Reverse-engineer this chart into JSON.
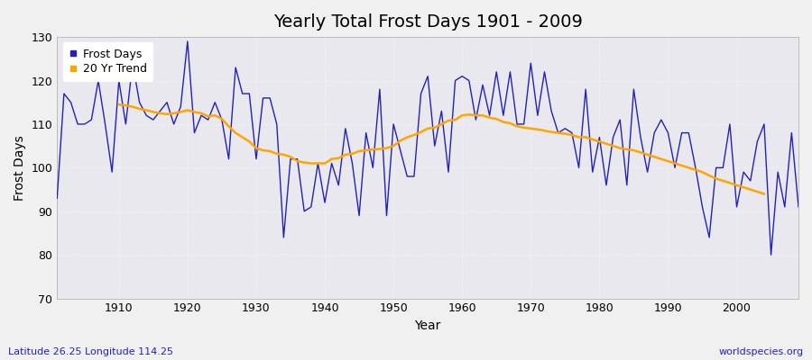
{
  "title": "Yearly Total Frost Days 1901 - 2009",
  "xlabel": "Year",
  "ylabel": "Frost Days",
  "lat_label": "Latitude 26.25 Longitude 114.25",
  "source_label": "worldspecies.org",
  "years": [
    1901,
    1902,
    1903,
    1904,
    1905,
    1906,
    1907,
    1908,
    1909,
    1910,
    1911,
    1912,
    1913,
    1914,
    1915,
    1916,
    1917,
    1918,
    1919,
    1920,
    1921,
    1922,
    1923,
    1924,
    1925,
    1926,
    1927,
    1928,
    1929,
    1930,
    1931,
    1932,
    1933,
    1934,
    1935,
    1936,
    1937,
    1938,
    1939,
    1940,
    1941,
    1942,
    1943,
    1944,
    1945,
    1946,
    1947,
    1948,
    1949,
    1950,
    1951,
    1952,
    1953,
    1954,
    1955,
    1956,
    1957,
    1958,
    1959,
    1960,
    1961,
    1962,
    1963,
    1964,
    1965,
    1966,
    1967,
    1968,
    1969,
    1970,
    1971,
    1972,
    1973,
    1974,
    1975,
    1976,
    1977,
    1978,
    1979,
    1980,
    1981,
    1982,
    1983,
    1984,
    1985,
    1986,
    1987,
    1988,
    1989,
    1990,
    1991,
    1992,
    1993,
    1994,
    1995,
    1996,
    1997,
    1998,
    1999,
    2000,
    2001,
    2002,
    2003,
    2004,
    2005,
    2006,
    2007,
    2008,
    2009
  ],
  "frost_days": [
    93,
    117,
    115,
    110,
    110,
    111,
    120,
    110,
    99,
    120,
    110,
    124,
    115,
    112,
    111,
    113,
    115,
    110,
    114,
    129,
    108,
    112,
    111,
    115,
    111,
    102,
    123,
    117,
    117,
    102,
    116,
    116,
    110,
    84,
    102,
    102,
    90,
    91,
    101,
    92,
    101,
    96,
    109,
    101,
    89,
    108,
    100,
    118,
    89,
    110,
    104,
    98,
    98,
    117,
    121,
    105,
    113,
    99,
    120,
    121,
    120,
    111,
    119,
    112,
    122,
    112,
    122,
    110,
    110,
    124,
    112,
    122,
    113,
    108,
    109,
    108,
    100,
    118,
    99,
    107,
    96,
    107,
    111,
    96,
    118,
    107,
    99,
    108,
    111,
    108,
    100,
    108,
    108,
    100,
    91,
    84,
    100,
    100,
    110,
    91,
    99,
    97,
    106,
    110,
    80,
    99,
    91,
    108,
    91
  ],
  "trend_years": [
    1901,
    1902,
    1903,
    1904,
    1905,
    1906,
    1907,
    1908,
    1909,
    1910,
    1911,
    1912,
    1913,
    1914,
    1915,
    1916,
    1917,
    1918,
    1919,
    1920,
    1921,
    1922,
    1923,
    1924,
    1925,
    1926,
    1927,
    1928,
    1929,
    1930,
    1931,
    1932,
    1933,
    1934,
    1935,
    1936,
    1937,
    1938,
    1939,
    1940,
    1941,
    1942,
    1943,
    1944,
    1945,
    1946,
    1947,
    1948,
    1949,
    1950,
    1951,
    1952,
    1953,
    1954,
    1955,
    1956,
    1957,
    1958,
    1959,
    1960,
    1961,
    1962,
    1963,
    1964,
    1965,
    1966,
    1967,
    1968,
    1969,
    1970,
    1971,
    1972,
    1973,
    1974,
    1975,
    1976,
    1977,
    1978,
    1979,
    1980,
    1981,
    1982,
    1983,
    1984,
    1985,
    1986,
    1987,
    1988,
    1989,
    1990,
    1991,
    1992,
    1993,
    1994,
    1995,
    1996,
    1997,
    1998,
    1999,
    2000,
    2001,
    2002,
    2003,
    2004,
    2005,
    2006,
    2007,
    2008,
    2009
  ],
  "trend_values": [
    null,
    null,
    null,
    null,
    null,
    null,
    null,
    null,
    null,
    114.5,
    114.3,
    114.0,
    113.5,
    113.2,
    112.8,
    112.5,
    112.3,
    112.5,
    112.8,
    113.2,
    112.8,
    112.5,
    111.8,
    112.0,
    111.2,
    109.5,
    108.0,
    107.0,
    106.0,
    104.5,
    104.0,
    103.8,
    103.2,
    103.0,
    102.5,
    101.5,
    101.2,
    101.0,
    101.0,
    101.0,
    102.0,
    102.2,
    103.0,
    103.2,
    103.8,
    104.0,
    104.2,
    104.3,
    104.5,
    105.0,
    106.2,
    107.0,
    107.5,
    108.2,
    109.0,
    109.2,
    110.0,
    110.8,
    111.0,
    112.0,
    112.2,
    112.0,
    112.0,
    111.5,
    111.2,
    110.5,
    110.2,
    109.5,
    109.2,
    109.0,
    108.8,
    108.5,
    108.2,
    108.0,
    107.8,
    107.5,
    107.0,
    107.0,
    106.5,
    106.0,
    105.5,
    105.0,
    104.5,
    104.2,
    104.0,
    103.5,
    103.0,
    102.5,
    102.0,
    101.5,
    101.0,
    100.5,
    100.0,
    99.5,
    99.0,
    98.2,
    97.5,
    97.0,
    96.5,
    96.0,
    95.5,
    95.0,
    94.5,
    94.0,
    null,
    null,
    null,
    null,
    null,
    null
  ],
  "line_color": "#2222bb",
  "trend_color": "#ffa500",
  "fig_bg_color": "#f0f0f0",
  "plot_bg_color": "#e8e8ee",
  "ylim": [
    70,
    130
  ],
  "yticks": [
    70,
    80,
    90,
    100,
    110,
    120,
    130
  ],
  "xlim": [
    1901,
    2009
  ],
  "xticks": [
    1910,
    1920,
    1930,
    1940,
    1950,
    1960,
    1970,
    1980,
    1990,
    2000
  ],
  "title_fontsize": 14,
  "axis_label_fontsize": 10,
  "tick_fontsize": 9,
  "legend_fontsize": 9,
  "bottom_label_color": "#333333"
}
